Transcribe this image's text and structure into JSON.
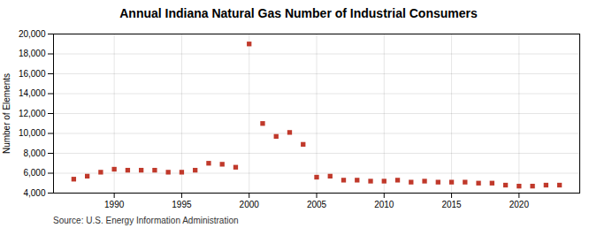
{
  "chart_data": {
    "type": "scatter",
    "title": "Annual Indiana Natural Gas Number of Industrial Consumers",
    "ylabel": "Number of Elements",
    "source": "Source: U.S. Energy Information Administration",
    "x": [
      1987,
      1988,
      1989,
      1990,
      1991,
      1992,
      1993,
      1994,
      1995,
      1996,
      1997,
      1998,
      1999,
      2000,
      2001,
      2002,
      2003,
      2004,
      2005,
      2006,
      2007,
      2008,
      2009,
      2010,
      2011,
      2012,
      2013,
      2014,
      2015,
      2016,
      2017,
      2018,
      2019,
      2020,
      2021,
      2022,
      2023
    ],
    "values": [
      5400,
      5700,
      6100,
      6400,
      6300,
      6300,
      6300,
      6100,
      6100,
      6300,
      7000,
      6900,
      6600,
      19000,
      11000,
      9700,
      10100,
      8900,
      5600,
      5700,
      5300,
      5300,
      5200,
      5200,
      5300,
      5100,
      5200,
      5100,
      5100,
      5100,
      5000,
      5000,
      4800,
      4700,
      4700,
      4800,
      4800
    ],
    "color": "#c0392b",
    "marker": "square",
    "xlim": [
      1985.5,
      2024.5
    ],
    "xticks": [
      1990,
      1995,
      2000,
      2005,
      2010,
      2015,
      2020
    ],
    "ylim": [
      4000,
      20000
    ],
    "yticks": [
      {
        "value": 4000,
        "label": "4,000"
      },
      {
        "value": 6000,
        "label": "6,000"
      },
      {
        "value": 8000,
        "label": "8,000"
      },
      {
        "value": 10000,
        "label": "10,000"
      },
      {
        "value": 12000,
        "label": "12,000"
      },
      {
        "value": 14000,
        "label": "14,000"
      },
      {
        "value": 16000,
        "label": "16,000"
      },
      {
        "value": 18000,
        "label": "18,000"
      },
      {
        "value": 20000,
        "label": "20,000"
      }
    ],
    "grid": true
  }
}
